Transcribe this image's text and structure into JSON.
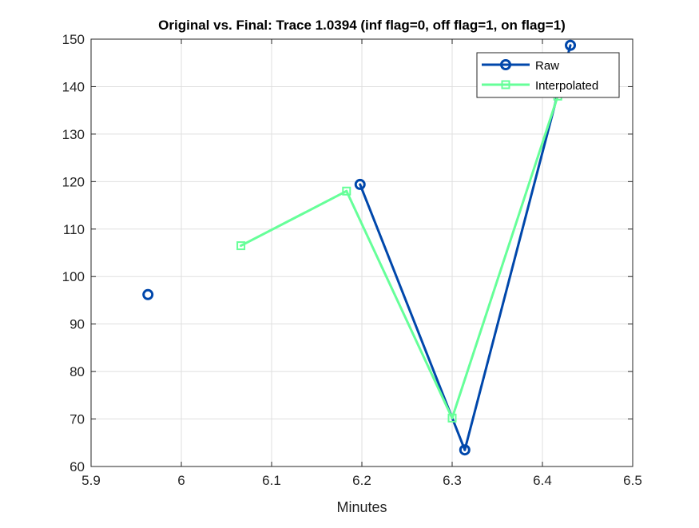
{
  "chart_data": {
    "type": "line",
    "title": "Original vs. Final: Trace 1.0394 (inf flag=0, off flag=1, on flag=1)",
    "xlabel": "Minutes",
    "ylabel": "",
    "xlim": [
      5.9,
      6.5
    ],
    "ylim": [
      60,
      150
    ],
    "xticks": [
      "5.9",
      "6",
      "6.1",
      "6.2",
      "6.3",
      "6.4",
      "6.5"
    ],
    "yticks": [
      "60",
      "70",
      "80",
      "90",
      "100",
      "110",
      "120",
      "130",
      "140",
      "150"
    ],
    "grid": true,
    "legend_position": "top-right",
    "series": [
      {
        "name": "Raw",
        "color": "#0047ab",
        "marker": "circle",
        "x": [
          5.963,
          6.198,
          6.314,
          6.431
        ],
        "y": [
          96.2,
          119.4,
          63.5,
          148.7
        ],
        "segments": [
          [
            1,
            2
          ],
          [
            2,
            3
          ]
        ]
      },
      {
        "name": "Interpolated",
        "color": "#66ff99",
        "marker": "square",
        "x": [
          6.066,
          6.183,
          6.3,
          6.417
        ],
        "y": [
          106.5,
          118.0,
          70.2,
          138.0
        ],
        "segments": [
          [
            0,
            1
          ],
          [
            1,
            2
          ],
          [
            2,
            3
          ]
        ]
      }
    ]
  }
}
